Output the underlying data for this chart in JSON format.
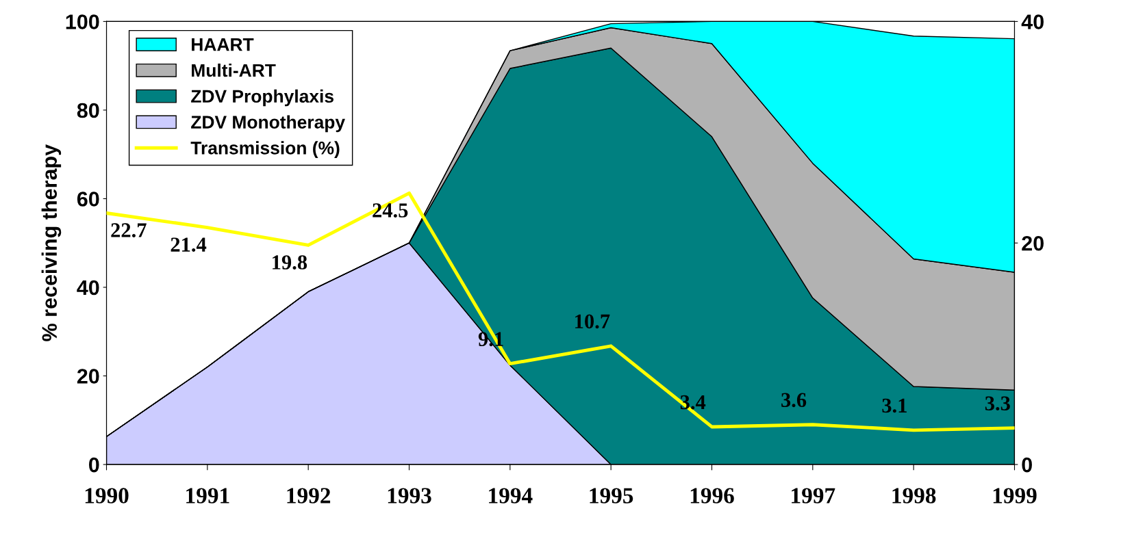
{
  "chart_data": {
    "type": "area",
    "stacked": true,
    "ylabel": "% receiving therapy",
    "x": [
      1990,
      1991,
      1992,
      1993,
      1994,
      1995,
      1996,
      1997,
      1998,
      1999
    ],
    "xlim": [
      1990,
      1999
    ],
    "xticks": [
      1990,
      1991,
      1992,
      1993,
      1994,
      1995,
      1996,
      1997,
      1998,
      1999
    ],
    "ylim": [
      0,
      100
    ],
    "yticks": [
      0,
      20,
      40,
      60,
      80,
      100
    ],
    "y2lim": [
      0,
      40
    ],
    "y2ticks": [
      0,
      20,
      40
    ],
    "legend": "top left",
    "grid": false,
    "series": [
      {
        "name": "ZDV Monotherapy",
        "color": "#ccccff",
        "values": [
          6.3,
          22,
          39,
          50,
          22.4,
          0,
          0,
          0,
          0,
          0
        ]
      },
      {
        "name": "ZDV Prophylaxis",
        "color": "#008080",
        "values": [
          0,
          0,
          0,
          0,
          67,
          94,
          74,
          37.6,
          17.6,
          16.8
        ]
      },
      {
        "name": "Multi-ART",
        "color": "#b2b2b2",
        "values": [
          0,
          0,
          0,
          0,
          4,
          4.6,
          21,
          30.4,
          28.8,
          26.6
        ]
      },
      {
        "name": "HAART",
        "color": "#00ffff",
        "values": [
          0,
          0,
          0,
          0,
          0,
          0.9,
          5,
          32,
          50.3,
          52.7
        ]
      },
      {
        "name": "Transmission (%)",
        "type": "line",
        "axis": "y2",
        "color": "#ffff00",
        "data_labels": true,
        "values": [
          22.7,
          21.4,
          19.8,
          24.5,
          9.1,
          10.7,
          3.4,
          3.6,
          3.1,
          3.3
        ]
      }
    ]
  }
}
